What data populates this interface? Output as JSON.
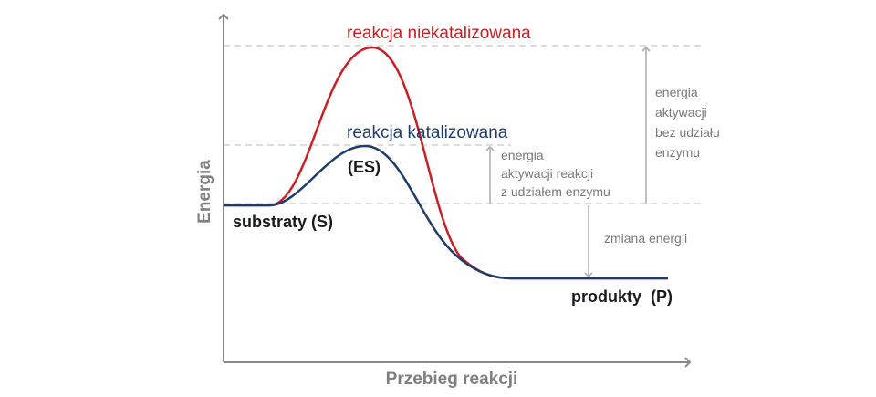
{
  "colors": {
    "uncatalyzed": "#cc1f24",
    "catalyzed": "#1f3d6b",
    "axis": "#8a8a8a",
    "guide": "#d0d0d0",
    "arrow": "#b0b0b0",
    "note_text": "#7a7a7a",
    "label_text": "#1a1a1a"
  },
  "axes": {
    "y_title": "Energia",
    "x_title": "Przebieg reakcji"
  },
  "curves": {
    "uncatalyzed_label": "reakcja niekatalizowana",
    "catalyzed_label": "reakcja katalizowana"
  },
  "states": {
    "es": "(ES)",
    "substrates": "substraty (S)",
    "products": "produkty  (P)"
  },
  "annotations": {
    "uncatalyzed_activation": [
      "energia",
      "aktywacji",
      "bez udziału",
      "enzymu"
    ],
    "catalyzed_activation": [
      "energia",
      "aktywacji reakcji",
      "z udziałem enzymu"
    ],
    "energy_change": "zmiana energii"
  }
}
